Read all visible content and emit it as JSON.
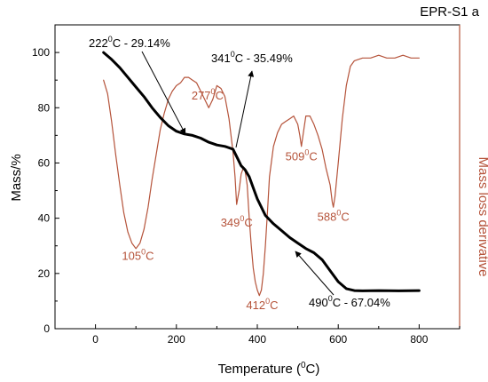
{
  "chart_data": {
    "type": "line",
    "title": "EPR-S1 a",
    "xlabel": "Temperature (",
    "xlabel_unit": "0",
    "xlabel_end": "C)",
    "ylabel": "Mass/%",
    "y2label": "Mass loss derivative",
    "xlim": [
      -100,
      900
    ],
    "ylim": [
      0,
      110
    ],
    "x_ticks": [
      0,
      200,
      400,
      600,
      800
    ],
    "y_ticks": [
      0,
      20,
      40,
      60,
      80,
      100
    ],
    "grid": false,
    "series": [
      {
        "color": "#000000",
        "axis": "left",
        "x": [
          20,
          40,
          60,
          80,
          100,
          120,
          140,
          160,
          180,
          200,
          220,
          240,
          260,
          280,
          300,
          320,
          340,
          350,
          360,
          370,
          380,
          390,
          400,
          420,
          440,
          460,
          480,
          500,
          520,
          540,
          560,
          580,
          600,
          620,
          640,
          660,
          700,
          750,
          800
        ],
        "y": [
          100,
          97.5,
          94.5,
          91,
          87.5,
          84,
          80,
          76.5,
          73.5,
          71.5,
          70.5,
          70,
          69,
          67.5,
          66.5,
          66,
          65,
          62,
          59,
          57.5,
          55,
          51,
          47,
          41,
          38,
          35.5,
          33,
          31,
          29,
          27.5,
          25,
          21,
          17,
          14.5,
          13.8,
          13.7,
          13.8,
          13.7,
          13.8
        ]
      },
      {
        "color": "#b5533a",
        "axis": "right",
        "x": [
          20,
          30,
          40,
          50,
          60,
          70,
          80,
          90,
          100,
          110,
          120,
          130,
          140,
          150,
          160,
          170,
          180,
          190,
          200,
          210,
          220,
          230,
          240,
          250,
          260,
          270,
          280,
          290,
          300,
          310,
          320,
          330,
          340,
          345,
          349,
          355,
          360,
          365,
          370,
          375,
          380,
          385,
          390,
          395,
          400,
          405,
          410,
          415,
          420,
          425,
          430,
          440,
          450,
          460,
          470,
          480,
          490,
          500,
          505,
          509,
          515,
          520,
          530,
          540,
          550,
          560,
          570,
          580,
          585,
          588,
          592,
          600,
          610,
          620,
          630,
          640,
          660,
          680,
          700,
          720,
          740,
          760,
          780,
          800
        ],
        "y": [
          90,
          85,
          75,
          63,
          52,
          42,
          35,
          31,
          29,
          31,
          36,
          44,
          54,
          63,
          72,
          78,
          83,
          86,
          88,
          89,
          91,
          91,
          90,
          89,
          86,
          83,
          80,
          83,
          88,
          87,
          84,
          76,
          64,
          55,
          45,
          50,
          56,
          58,
          57,
          52,
          40,
          30,
          22,
          17,
          14,
          12,
          14,
          20,
          30,
          42,
          55,
          66,
          71,
          74,
          75,
          76,
          77,
          74,
          70,
          66,
          72,
          77,
          77,
          74,
          70,
          65,
          58,
          52,
          46,
          44,
          48,
          60,
          76,
          88,
          95,
          97,
          98,
          98,
          99,
          98,
          98,
          99,
          98,
          98
        ]
      }
    ],
    "peak_labels": [
      {
        "value": "105",
        "unit": "C",
        "x": 105,
        "y": 25
      },
      {
        "value": "277",
        "unit": "C",
        "x": 277,
        "y": 83
      },
      {
        "value": "349",
        "unit": "C",
        "x": 349,
        "y": 37
      },
      {
        "value": "412",
        "unit": "C",
        "x": 412,
        "y": 7
      },
      {
        "value": "509",
        "unit": "C",
        "x": 509,
        "y": 61
      },
      {
        "value": "588",
        "unit": "C",
        "x": 588,
        "y": 39
      }
    ],
    "mass_annotations": [
      {
        "temp": "222",
        "unit": "C",
        "mass": "29.14%",
        "x": 0,
        "y": 104,
        "tip": [
          222,
          70.5
        ]
      },
      {
        "temp": "341",
        "unit": "C",
        "mass": "35.49%",
        "x": 295,
        "y": 95,
        "tip": [
          341,
          65
        ]
      },
      {
        "temp": "490",
        "unit": "C",
        "mass": "67.04%",
        "x": 490,
        "y": 8,
        "tip": [
          490,
          32
        ]
      }
    ],
    "degree_sup": "0"
  }
}
